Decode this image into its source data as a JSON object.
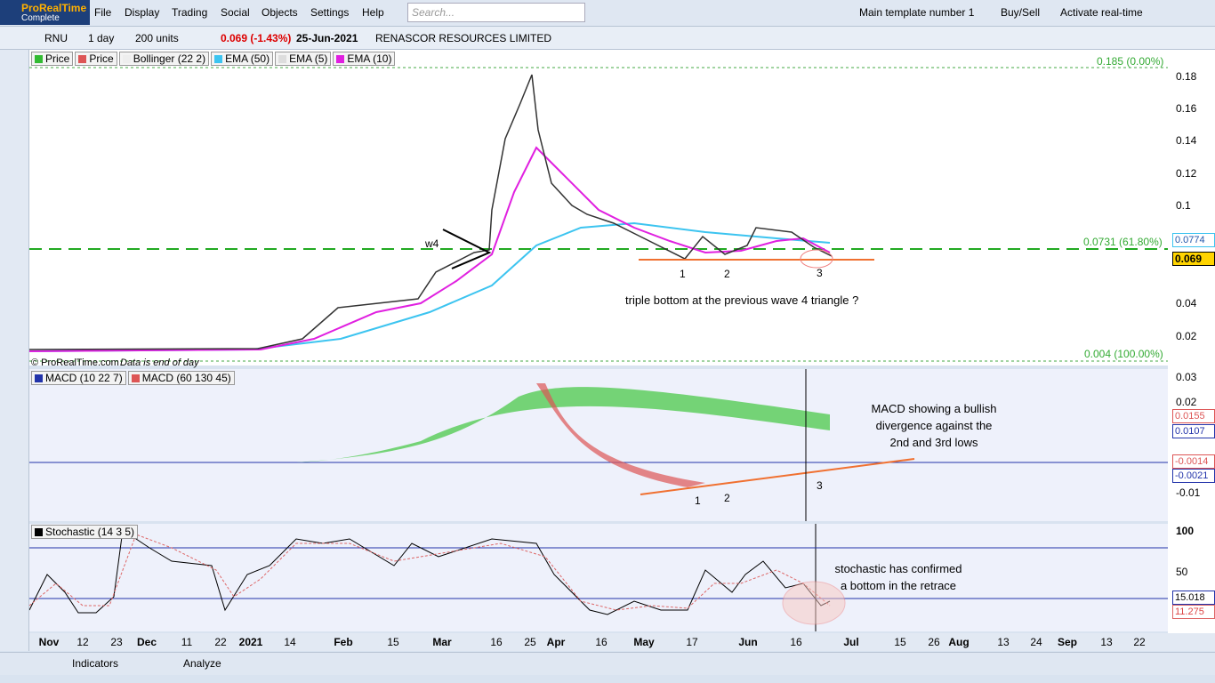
{
  "app": {
    "name": "ProRealTime",
    "edition": "Complete"
  },
  "menu": [
    "File",
    "Display",
    "Trading",
    "Social",
    "Objects",
    "Settings",
    "Help"
  ],
  "search": "Search...",
  "toolbar_right": [
    "Main template number 1",
    "Buy/Sell",
    "Activate real-time"
  ],
  "instrument": {
    "ticker": "RNU",
    "period": "1 day",
    "units": "200 units",
    "price": "0.069 (-1.43%)",
    "date": "25-Jun-2021",
    "name": "RENASCOR RESOURCES LIMITED"
  },
  "price_legend": [
    "Price",
    "Price",
    "Bollinger (22 2)",
    "EMA (50)",
    "EMA (5)",
    "EMA (10)"
  ],
  "price_axis": [
    "0.18",
    "0.16",
    "0.14",
    "0.12",
    "0.1",
    "0.04",
    "0.02"
  ],
  "price_tags": [
    "0.0774",
    "0.069"
  ],
  "fib": [
    "0.185 (0.00%)",
    "0.0731 (61.80%)",
    "0.004 (100.00%)"
  ],
  "copyright": "© ProRealTime.com",
  "data_note": "Data is end of day",
  "price_notes": {
    "w4": "w4",
    "n1": "1",
    "n2": "2",
    "n3": "3",
    "text": "triple bottom at the previous wave 4 triangle ?"
  },
  "macd_legend": [
    "MACD (10 22 7)",
    "MACD (60 130 45)"
  ],
  "macd_axis": [
    "0.03",
    "0.02",
    "-0.01"
  ],
  "macd_tags": [
    "0.0155",
    "0.0107",
    "-0.0014",
    "-0.0021"
  ],
  "macd_notes": {
    "n1": "1",
    "n2": "2",
    "n3": "3",
    "lines": [
      "MACD showing a bullish",
      "divergence against the",
      "2nd and 3rd lows"
    ]
  },
  "stoch_legend": "Stochastic (14 3 5)",
  "stoch_axis": [
    "100",
    "50"
  ],
  "stoch_tags": [
    "15.018",
    "11.275"
  ],
  "stoch_notes": [
    "stochastic has confirmed",
    "a bottom in the retrace"
  ],
  "dates": [
    "Nov",
    "12",
    "23",
    "Dec",
    "11",
    "22",
    "2021",
    "14",
    "Feb",
    "15",
    "Mar",
    "16",
    "25",
    "Apr",
    "16",
    "May",
    "17",
    "Jun",
    "16",
    "Jul",
    "15",
    "26",
    "Aug",
    "13",
    "24",
    "Sep",
    "13",
    "22"
  ],
  "bottom": [
    "Indicators",
    "Analyze"
  ]
}
